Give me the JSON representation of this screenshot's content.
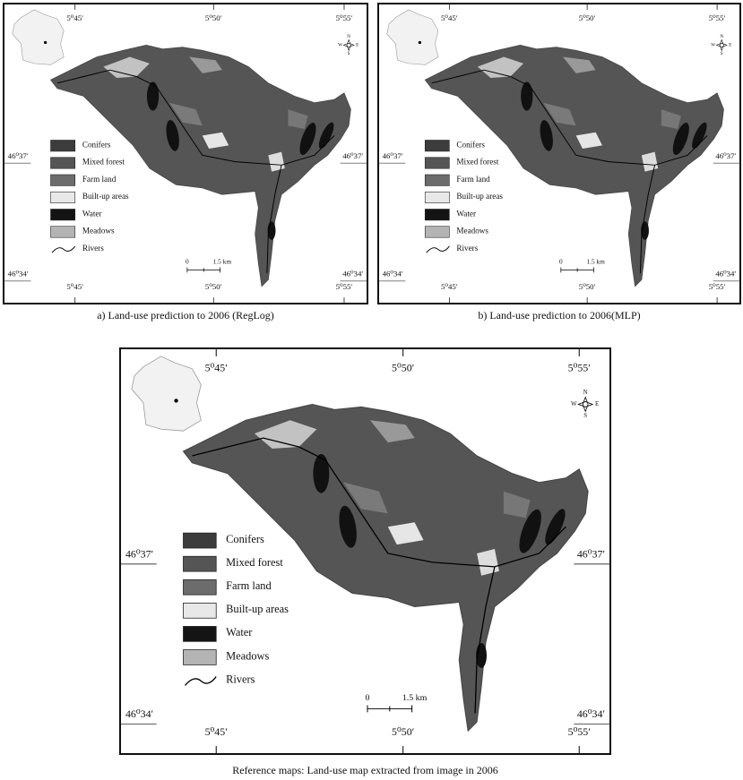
{
  "panels": [
    {
      "caption": "a) Land-use prediction to 2006 (RegLog)",
      "longitudes": [
        "5⁰45′",
        "5⁰50′",
        "5⁰55′"
      ],
      "longitudes_bottom": [
        "5⁰45′",
        "5⁰50′",
        "5⁰55′"
      ],
      "latitudes": [
        "46⁰37′",
        "46⁰34′"
      ],
      "latitudes_right": [
        "46⁰37′",
        "46⁰34′"
      ],
      "legend": [
        "Conifers",
        "Mixed forest",
        "Farm land",
        "Built-up areas",
        "Water",
        "Meadows",
        "Rivers"
      ],
      "legend_colors": [
        "#3c3c3c",
        "#555555",
        "#6c6c6c",
        "#e8e8e8",
        "#141414",
        "#b4b4b4"
      ],
      "scale": [
        "0",
        "1.5 km"
      ],
      "compass": [
        "N",
        "W",
        "E",
        "S"
      ]
    },
    {
      "caption": "b) Land-use prediction to 2006(MLP)",
      "longitudes": [
        "5⁰45′",
        "5⁰50′",
        "5⁰55′"
      ],
      "longitudes_bottom": [
        "5⁰45′",
        "5⁰50′",
        "5⁰55′"
      ],
      "latitudes": [
        "46⁰37′",
        "46⁰34′"
      ],
      "latitudes_right": [
        "46⁰37′",
        "46⁰34′"
      ],
      "legend": [
        "Conifers",
        "Mixed forest",
        "Farm land",
        "Built-up areas",
        "Water",
        "Meadows",
        "Rivers"
      ],
      "legend_colors": [
        "#3c3c3c",
        "#555555",
        "#6c6c6c",
        "#e8e8e8",
        "#141414",
        "#b4b4b4"
      ],
      "scale": [
        "0",
        "1.5 km"
      ],
      "compass": [
        "N",
        "W",
        "E",
        "S"
      ]
    },
    {
      "caption": "Reference maps: Land-use map extracted from image in 2006",
      "longitudes": [
        "5⁰45′",
        "5⁰50′",
        "5⁰55′"
      ],
      "longitudes_bottom": [
        "5⁰45′",
        "5⁰50′",
        "5⁰55′"
      ],
      "latitudes": [
        "46⁰37′",
        "46⁰34′"
      ],
      "latitudes_right": [
        "46⁰37′",
        "46⁰34′"
      ],
      "legend": [
        "Conifers",
        "Mixed forest",
        "Farm land",
        "Built-up areas",
        "Water",
        "Meadows",
        "Rivers"
      ],
      "legend_colors": [
        "#3c3c3c",
        "#555555",
        "#6c6c6c",
        "#e8e8e8",
        "#141414",
        "#b4b4b4"
      ],
      "scale": [
        "0",
        "1.5 km"
      ],
      "compass": [
        "N",
        "W",
        "E",
        "S"
      ]
    }
  ]
}
